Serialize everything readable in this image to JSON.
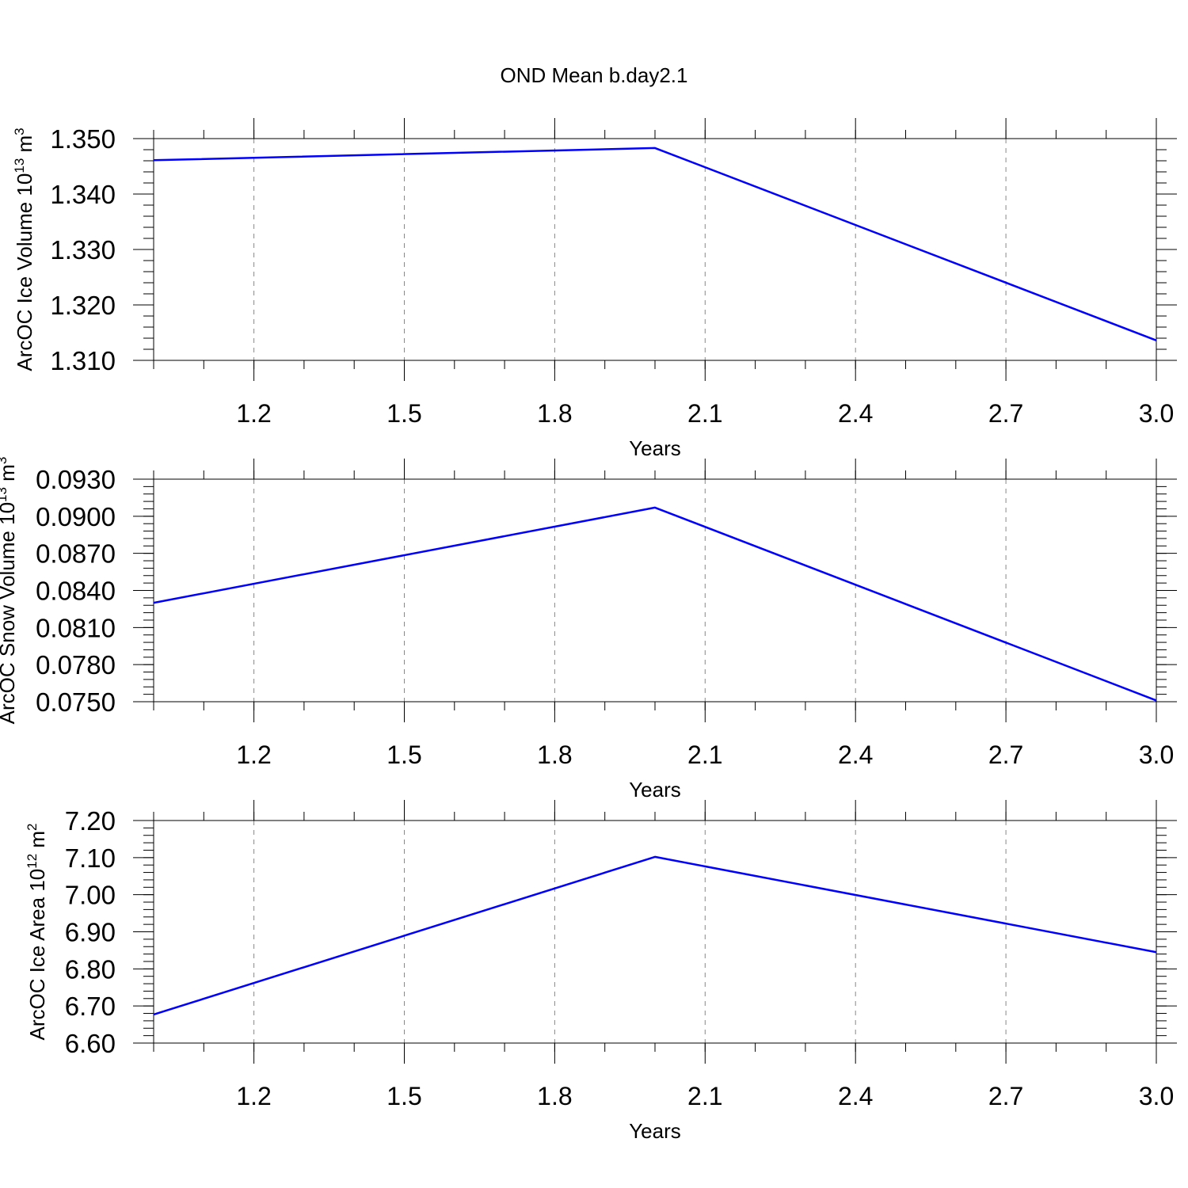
{
  "chart_data": [
    {
      "type": "line",
      "title": "OND Mean b.day2.1",
      "xlabel": "Years",
      "ylabel": "ArcOC Ice Volume 10",
      "ylabel_sup": "13",
      "ylabel_unit": "m",
      "ylabel_unit_sup": "3",
      "xlim": [
        1.0,
        3.0
      ],
      "ylim": [
        1.31,
        1.35
      ],
      "xticks": [
        1.2,
        1.5,
        1.8,
        2.1,
        2.4,
        2.7,
        3.0
      ],
      "xtick_labels": [
        "1.2",
        "1.5",
        "1.8",
        "2.1",
        "2.4",
        "2.7",
        "3.0"
      ],
      "yticks": [
        1.31,
        1.32,
        1.33,
        1.34,
        1.35
      ],
      "ytick_labels": [
        "1.310",
        "1.320",
        "1.330",
        "1.340",
        "1.350"
      ],
      "grid": "vertical dashed",
      "series": [
        {
          "color": "#0000ff",
          "x": [
            1,
            2,
            3
          ],
          "values": [
            1.3461,
            1.3483,
            1.3136
          ]
        }
      ]
    },
    {
      "type": "line",
      "xlabel": "Years",
      "ylabel": "ArcOC Snow Volume 10",
      "ylabel_sup": "13",
      "ylabel_unit": "m",
      "ylabel_unit_sup": "3",
      "xlim": [
        1.0,
        3.0
      ],
      "ylim": [
        0.075,
        0.093
      ],
      "xticks": [
        1.2,
        1.5,
        1.8,
        2.1,
        2.4,
        2.7,
        3.0
      ],
      "xtick_labels": [
        "1.2",
        "1.5",
        "1.8",
        "2.1",
        "2.4",
        "2.7",
        "3.0"
      ],
      "yticks": [
        0.075,
        0.078,
        0.081,
        0.084,
        0.087,
        0.09,
        0.093
      ],
      "ytick_labels": [
        "0.0750",
        "0.0780",
        "0.0810",
        "0.0840",
        "0.0870",
        "0.0900",
        "0.0930"
      ],
      "grid": "vertical dashed",
      "series": [
        {
          "color": "#0000ff",
          "x": [
            1,
            2,
            3
          ],
          "values": [
            0.083,
            0.0907,
            0.0751
          ]
        }
      ]
    },
    {
      "type": "line",
      "xlabel": "Years",
      "ylabel": "ArcOC Ice Area 10",
      "ylabel_sup": "12",
      "ylabel_unit": "m",
      "ylabel_unit_sup": "2",
      "xlim": [
        1.0,
        3.0
      ],
      "ylim": [
        6.6,
        7.2
      ],
      "xticks": [
        1.2,
        1.5,
        1.8,
        2.1,
        2.4,
        2.7,
        3.0
      ],
      "xtick_labels": [
        "1.2",
        "1.5",
        "1.8",
        "2.1",
        "2.4",
        "2.7",
        "3.0"
      ],
      "yticks": [
        6.6,
        6.7,
        6.8,
        6.9,
        7.0,
        7.1,
        7.2
      ],
      "ytick_labels": [
        "6.60",
        "6.70",
        "6.80",
        "6.90",
        "7.00",
        "7.10",
        "7.20"
      ],
      "grid": "vertical dashed",
      "series": [
        {
          "color": "#0000ff",
          "x": [
            1,
            2,
            3
          ],
          "values": [
            6.677,
            7.102,
            6.845
          ]
        }
      ]
    }
  ]
}
